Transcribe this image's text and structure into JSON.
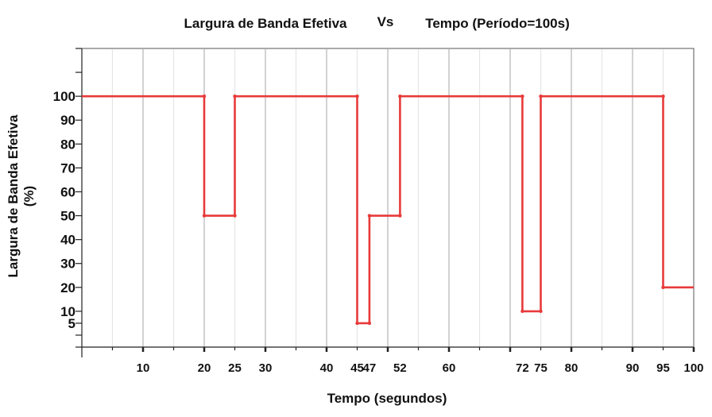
{
  "chart_data": {
    "type": "line",
    "step": true,
    "title_parts": [
      "Largura de Banda Efetiva",
      "Vs",
      "Tempo (Período=100s)"
    ],
    "xlabel": "Tempo (segundos)",
    "ylabel": [
      "Largura de Banda Efetiva",
      "(%)"
    ],
    "xlim": [
      0,
      100
    ],
    "ylim": [
      -5,
      120
    ],
    "x_ticks": [
      10,
      20,
      25,
      30,
      40,
      45,
      47,
      52,
      60,
      72,
      75,
      80,
      90,
      95,
      100
    ],
    "y_ticks": [
      5,
      10,
      20,
      30,
      40,
      50,
      60,
      70,
      80,
      90,
      100
    ],
    "grid": true,
    "color": "#e83a3a",
    "series": [
      {
        "x": [
          0,
          20,
          20,
          25,
          25,
          45,
          45,
          47,
          47,
          52,
          52,
          72,
          72,
          75,
          75,
          95,
          95,
          100
        ],
        "y": [
          100,
          100,
          50,
          50,
          100,
          100,
          5,
          5,
          50,
          50,
          100,
          100,
          10,
          10,
          100,
          100,
          20,
          20
        ]
      }
    ]
  }
}
